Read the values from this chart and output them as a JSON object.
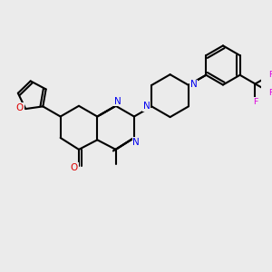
{
  "bg_color": "#ebebeb",
  "bond_color": "#000000",
  "N_color": "#0000ee",
  "O_color": "#dd0000",
  "F_color": "#dd00dd",
  "lw": 1.5,
  "xlim": [
    0,
    10
  ],
  "ylim": [
    0,
    10
  ],
  "BL": 0.82
}
